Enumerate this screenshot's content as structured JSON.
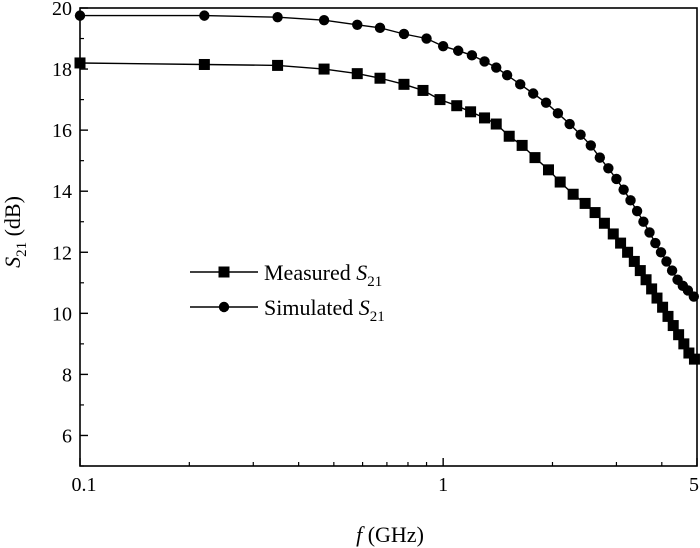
{
  "chart_data": {
    "type": "line",
    "x_scale": "log",
    "xlim": [
      0.1,
      5
    ],
    "ylim": [
      5,
      20
    ],
    "grid": false,
    "legend_position": "left-middle",
    "xlabel": {
      "main": "f",
      "unit": " (GHz)"
    },
    "ylabel": {
      "main": "S",
      "sub": "21",
      "unit": " (dB)"
    },
    "x_ticks": [
      {
        "value": 0.1,
        "label": "0.1"
      },
      {
        "value": 1,
        "label": "1"
      },
      {
        "value": 5,
        "label": "5"
      }
    ],
    "y_ticks": [
      {
        "value": 6,
        "label": "6"
      },
      {
        "value": 8,
        "label": "8"
      },
      {
        "value": 10,
        "label": "10"
      },
      {
        "value": 12,
        "label": "12"
      },
      {
        "value": 14,
        "label": "14"
      },
      {
        "value": 16,
        "label": "16"
      },
      {
        "value": 18,
        "label": "18"
      },
      {
        "value": 20,
        "label": "20"
      }
    ],
    "series": [
      {
        "name": "Measured S21",
        "legend": {
          "main": "Measured ",
          "sym": "S",
          "sub": "21"
        },
        "marker": "square",
        "color": "#000000",
        "x": [
          0.1,
          0.22,
          0.35,
          0.47,
          0.58,
          0.67,
          0.78,
          0.88,
          0.98,
          1.09,
          1.19,
          1.3,
          1.4,
          1.52,
          1.65,
          1.79,
          1.95,
          2.1,
          2.28,
          2.46,
          2.62,
          2.78,
          2.94,
          3.08,
          3.22,
          3.36,
          3.49,
          3.62,
          3.75,
          3.88,
          4.02,
          4.16,
          4.3,
          4.45,
          4.6,
          4.75,
          4.92
        ],
        "y": [
          18.2,
          18.15,
          18.12,
          18.0,
          17.85,
          17.7,
          17.5,
          17.3,
          17.0,
          16.8,
          16.6,
          16.4,
          16.2,
          15.8,
          15.5,
          15.1,
          14.7,
          14.3,
          13.9,
          13.6,
          13.3,
          12.95,
          12.6,
          12.3,
          12.0,
          11.7,
          11.4,
          11.1,
          10.8,
          10.5,
          10.2,
          9.9,
          9.6,
          9.3,
          9.0,
          8.7,
          8.5
        ]
      },
      {
        "name": "Simulated S21",
        "legend": {
          "main": "Simulated ",
          "sym": "S",
          "sub": "21"
        },
        "marker": "circle",
        "color": "#000000",
        "x": [
          0.1,
          0.22,
          0.35,
          0.47,
          0.58,
          0.67,
          0.78,
          0.9,
          1.0,
          1.1,
          1.2,
          1.3,
          1.4,
          1.5,
          1.63,
          1.77,
          1.92,
          2.07,
          2.23,
          2.39,
          2.55,
          2.7,
          2.85,
          3.0,
          3.14,
          3.28,
          3.42,
          3.56,
          3.7,
          3.84,
          3.98,
          4.12,
          4.27,
          4.42,
          4.57,
          4.72,
          4.9
        ],
        "y": [
          19.75,
          19.75,
          19.7,
          19.6,
          19.45,
          19.35,
          19.15,
          19.0,
          18.75,
          18.6,
          18.45,
          18.25,
          18.05,
          17.8,
          17.5,
          17.2,
          16.9,
          16.55,
          16.2,
          15.85,
          15.5,
          15.1,
          14.75,
          14.4,
          14.05,
          13.7,
          13.35,
          13.0,
          12.65,
          12.3,
          12.0,
          11.7,
          11.4,
          11.1,
          10.9,
          10.75,
          10.55
        ]
      }
    ]
  }
}
